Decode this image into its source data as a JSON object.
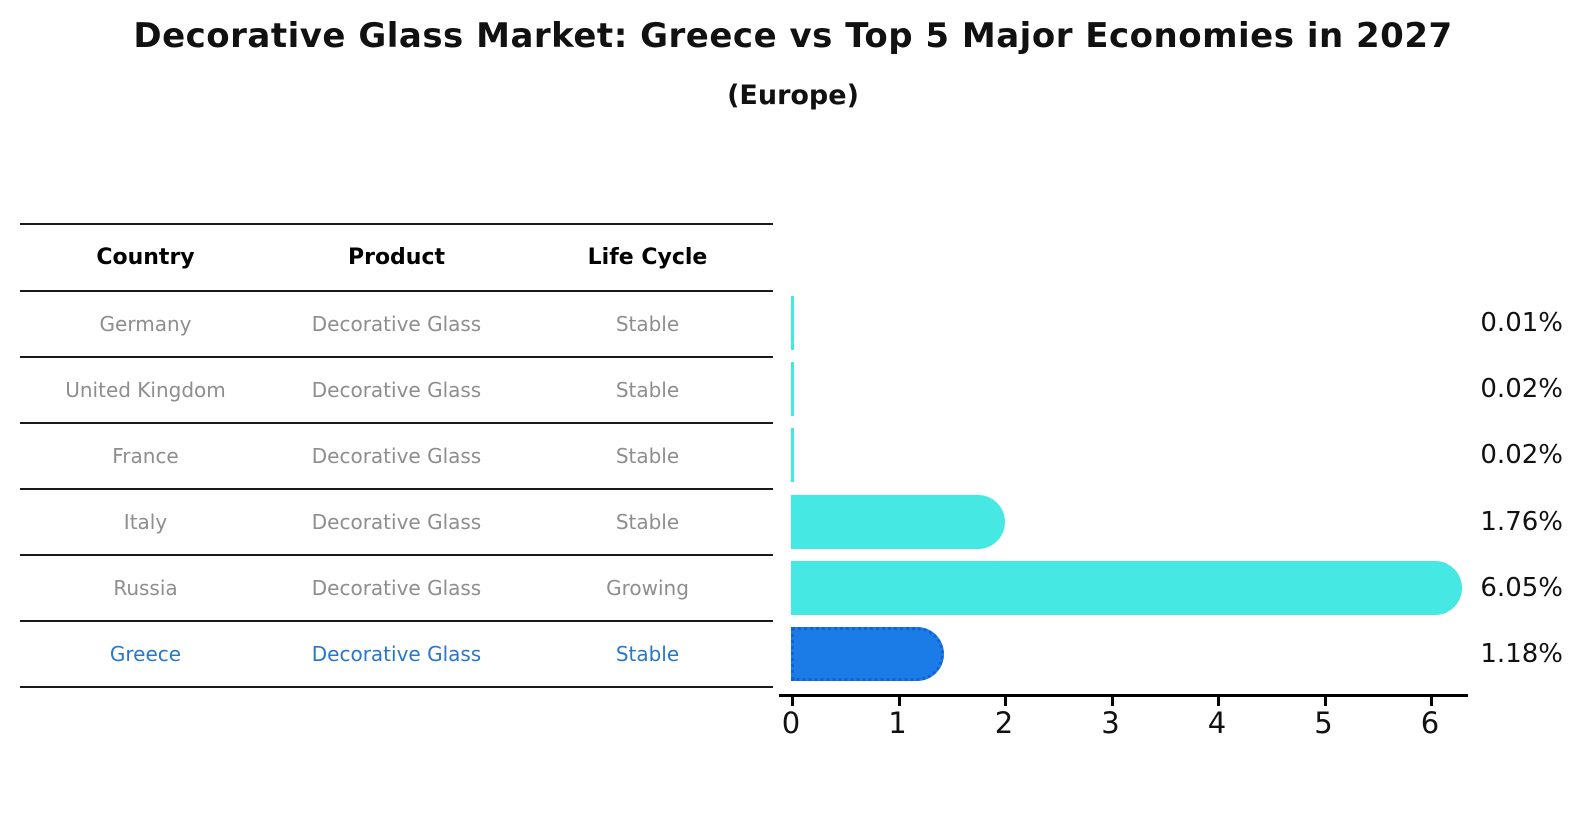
{
  "title": "Decorative Glass Market: Greece vs Top 5 Major Economies in 2027",
  "subtitle": "(Europe)",
  "table": {
    "headers": [
      "Country",
      "Product",
      "Life Cycle"
    ]
  },
  "chart_data": {
    "type": "bar",
    "orientation": "horizontal",
    "title": "Decorative Glass Market: Greece vs Top 5 Major Economies in 2027 (Europe)",
    "categories": [
      "Germany",
      "United Kingdom",
      "France",
      "Italy",
      "Russia",
      "Greece"
    ],
    "values": [
      0.01,
      0.02,
      0.02,
      1.76,
      6.05,
      1.18
    ],
    "value_labels": [
      "0.01%",
      "0.02%",
      "0.02%",
      "1.76%",
      "6.05%",
      "1.18%"
    ],
    "x_ticks": [
      0,
      1,
      2,
      3,
      4,
      5,
      6
    ],
    "xlim": [
      0,
      6.4
    ],
    "grid": false,
    "legend": false,
    "rows": [
      {
        "country": "Germany",
        "product": "Decorative Glass",
        "life_cycle": "Stable",
        "value": 0.01,
        "value_label": "0.01%",
        "highlight": false
      },
      {
        "country": "United Kingdom",
        "product": "Decorative Glass",
        "life_cycle": "Stable",
        "value": 0.02,
        "value_label": "0.02%",
        "highlight": false
      },
      {
        "country": "France",
        "product": "Decorative Glass",
        "life_cycle": "Stable",
        "value": 0.02,
        "value_label": "0.02%",
        "highlight": false
      },
      {
        "country": "Italy",
        "product": "Decorative Glass",
        "life_cycle": "Stable",
        "value": 1.76,
        "value_label": "1.76%",
        "highlight": false
      },
      {
        "country": "Russia",
        "product": "Decorative Glass",
        "life_cycle": "Growing",
        "value": 6.05,
        "value_label": "6.05%",
        "highlight": false
      },
      {
        "country": "Greece",
        "product": "Decorative Glass",
        "life_cycle": "Stable",
        "value": 1.18,
        "value_label": "1.18%",
        "highlight": true
      }
    ],
    "colors": {
      "bar_default": "#45e8e2",
      "bar_highlight": "#1b7ce8",
      "highlight_border": "#0e63d8",
      "highlight_text": "#2878ca",
      "row_text": "#8e8e8e",
      "axis": "#000000",
      "background": "#ffffff"
    }
  }
}
